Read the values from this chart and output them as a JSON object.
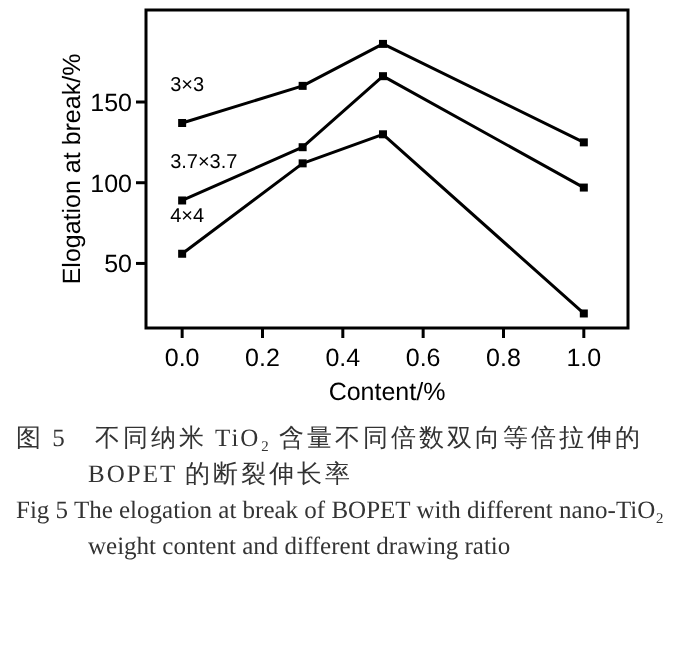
{
  "chart_data": {
    "type": "line",
    "xlabel": "Content/%",
    "ylabel": "Elogation at break/%",
    "x": [
      0.0,
      0.3,
      0.5,
      1.0
    ],
    "series": [
      {
        "name": "3×3",
        "color": "#000000",
        "values": [
          137,
          160,
          186,
          125
        ]
      },
      {
        "name": "3.7×3.7",
        "color": "#000000",
        "values": [
          89,
          122,
          166,
          97
        ]
      },
      {
        "name": "4×4",
        "color": "#000000",
        "values": [
          56,
          112,
          130,
          19
        ]
      }
    ],
    "xlim": [
      -0.09,
      1.11
    ],
    "ylim": [
      10,
      207
    ],
    "xticks": [
      {
        "value": 0,
        "label": "0.0"
      },
      {
        "value": 0.2,
        "label": "0.2"
      },
      {
        "value": 0.4,
        "label": "0.4"
      },
      {
        "value": 0.6,
        "label": "0.6"
      },
      {
        "value": 0.8,
        "label": "0.8"
      },
      {
        "value": 1,
        "label": "1.0"
      }
    ],
    "yticks": [
      50,
      100,
      150
    ],
    "grid": false,
    "marker": "square",
    "line_style": "solid",
    "annotations": [
      "图 5　不同纳米 TiO₂ 含量不同倍数双向等倍拉伸的 BOPET 的断裂伸长率",
      "Fig 5 The elogation at break of BOPET with different nano-TiO₂ weight content and different drawing ratio"
    ]
  }
}
